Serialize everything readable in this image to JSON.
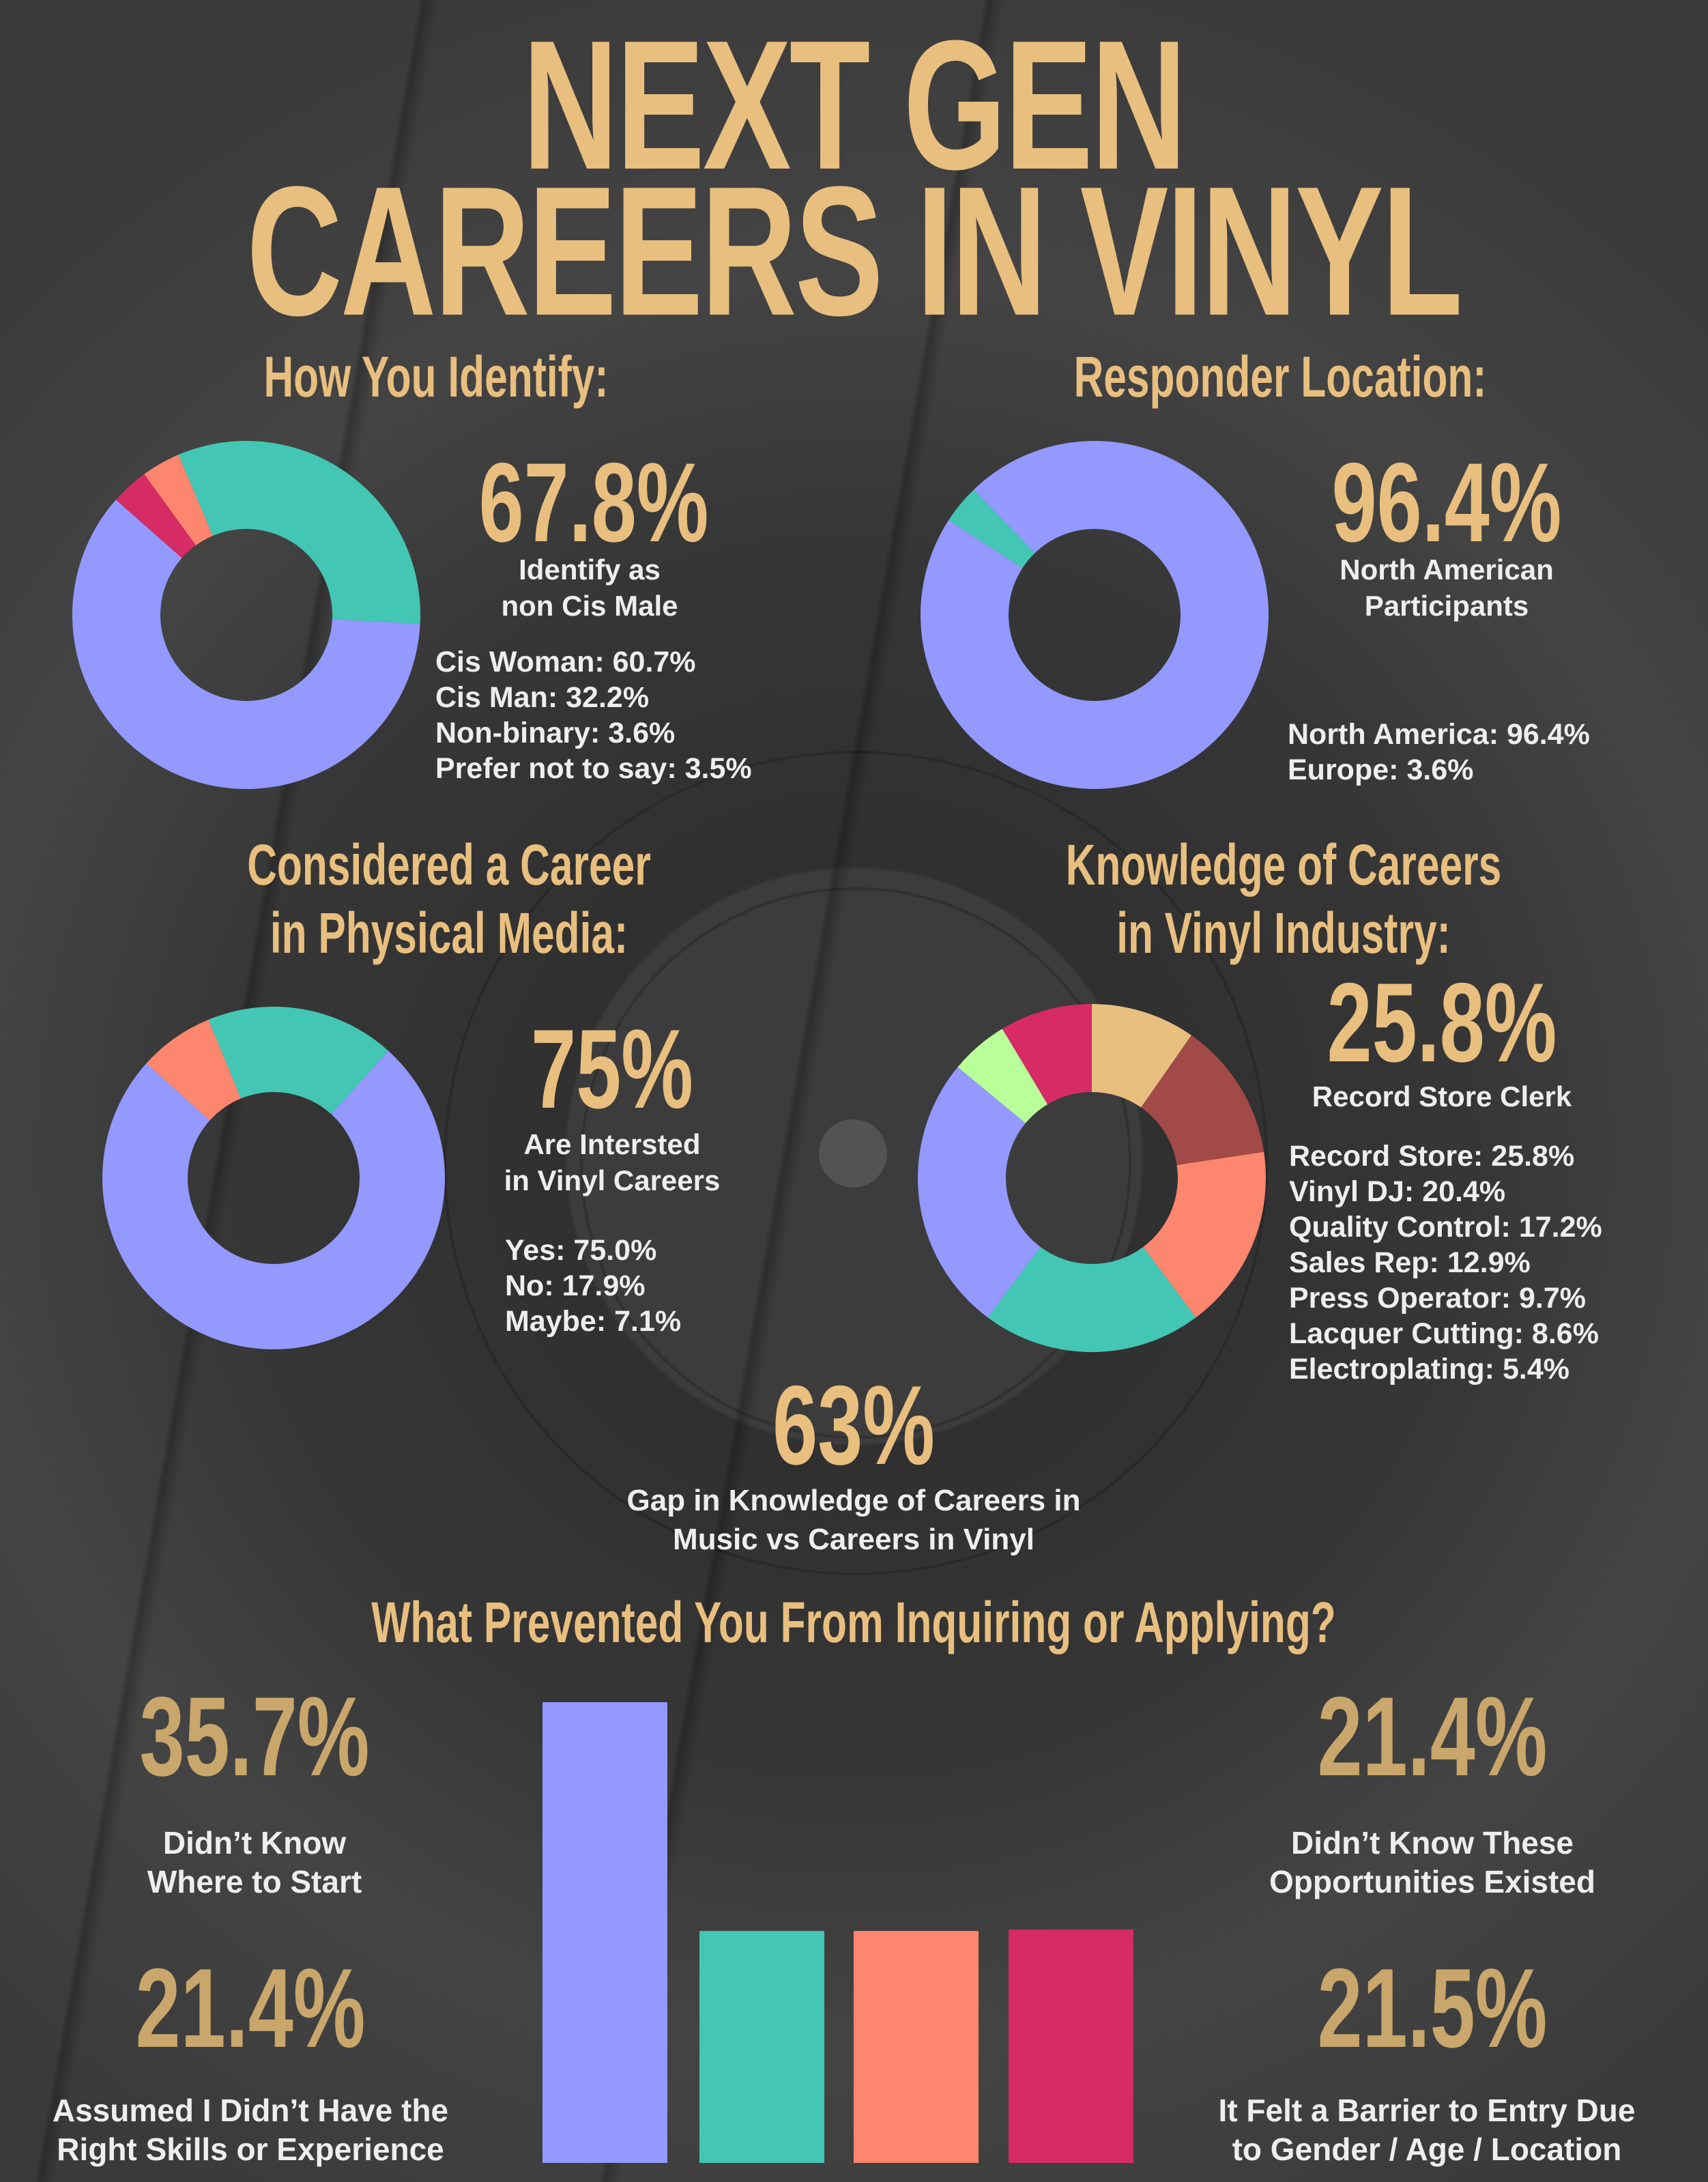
{
  "title": {
    "line1": "NEXT GEN",
    "line2": "CAREERS IN VINYL"
  },
  "colors": {
    "gold": "#e8bf7f",
    "purple": "#9399ff",
    "teal": "#43c7b4",
    "salmon": "#ff866e",
    "crimson": "#d62b64",
    "lightgreen": "#b8ff9a",
    "tan": "#e8bf7f",
    "brown": "#a14a48",
    "background": "#3a3a3a"
  },
  "identify": {
    "heading": "How You Identify:",
    "stat": "67.8%",
    "stat_label": [
      "Identify as",
      "non Cis Male"
    ],
    "legend": [
      "Cis Woman: 60.7%",
      "Cis Man: 32.2%",
      "Non-binary: 3.6%",
      "Prefer not to say: 3.5%"
    ]
  },
  "location": {
    "heading": "Responder Location:",
    "stat": "96.4%",
    "stat_label": [
      "North American",
      "Participants"
    ],
    "legend": [
      "North America: 96.4%",
      "Europe: 3.6%"
    ]
  },
  "considered": {
    "heading": [
      "Considered a Career",
      "in Physical Media:"
    ],
    "stat": "75%",
    "stat_label": [
      "Are Intersted",
      "in Vinyl Careers"
    ],
    "legend": [
      "Yes: 75.0%",
      "No: 17.9%",
      "Maybe: 7.1%"
    ]
  },
  "knowledge": {
    "heading": [
      "Knowledge of Careers",
      "in Vinyl Industry:"
    ],
    "stat": "25.8%",
    "stat_label": "Record Store Clerk",
    "legend": [
      "Record Store: 25.8%",
      "Vinyl DJ: 20.4%",
      "Quality Control: 17.2%",
      "Sales Rep: 12.9%",
      "Press Operator: 9.7%",
      "Lacquer Cutting: 8.6%",
      "Electroplating: 5.4%"
    ]
  },
  "gap": {
    "stat": "63%",
    "label": [
      "Gap in Knowledge of Careers in",
      "Music vs Careers in Vinyl"
    ]
  },
  "prevented": {
    "heading": "What Prevented You From Inquiring or Applying?",
    "items": [
      {
        "stat": "35.7%",
        "label": [
          "Didn’t Know",
          "Where to Start"
        ]
      },
      {
        "stat": "21.4%",
        "label": [
          "Didn’t Know These",
          "Opportunities Existed"
        ]
      },
      {
        "stat": "21.4%",
        "label": [
          "Assumed I Didn’t Have the",
          "Right Skills or Experience"
        ]
      },
      {
        "stat": "21.5%",
        "label": [
          "It Felt a Barrier to Entry Due",
          "to Gender / Age / Location"
        ]
      }
    ]
  },
  "chart_data": [
    {
      "type": "pie",
      "donut": true,
      "categories": [
        "Cis Man",
        "Cis Woman",
        "Prefer not to say",
        "Non-binary"
      ],
      "values": [
        32.2,
        60.7,
        3.5,
        3.6
      ],
      "colors": [
        "#43c7b4",
        "#9399ff",
        "#d62b64",
        "#ff866e"
      ]
    },
    {
      "type": "pie",
      "donut": true,
      "categories": [
        "North America",
        "Europe"
      ],
      "values": [
        96.4,
        3.6
      ],
      "colors": [
        "#9399ff",
        "#43c7b4"
      ]
    },
    {
      "type": "pie",
      "donut": true,
      "categories": [
        "No",
        "Yes",
        "Maybe"
      ],
      "values": [
        17.9,
        75.0,
        7.1
      ],
      "colors": [
        "#43c7b4",
        "#9399ff",
        "#ff866e"
      ]
    },
    {
      "type": "pie",
      "donut": true,
      "categories": [
        "Press Operator",
        "Sales Rep",
        "Quality Control",
        "Vinyl DJ",
        "Record Store",
        "Electroplating",
        "Lacquer Cutting"
      ],
      "values": [
        9.7,
        12.9,
        17.2,
        20.4,
        25.8,
        5.4,
        8.6
      ],
      "colors": [
        "#e8bf7f",
        "#a14a48",
        "#ff866e",
        "#43c7b4",
        "#9399ff",
        "#b8ff9a",
        "#d62b64"
      ]
    },
    {
      "type": "bar",
      "categories": [
        "Didn’t Know Where to Start",
        "Didn’t Know These Opportunities Existed",
        "Assumed I Didn’t Have the Right Skills or Experience",
        "It Felt a Barrier to Entry Due to Gender / Age / Location"
      ],
      "values": [
        35.7,
        21.4,
        21.4,
        21.5
      ],
      "colors": [
        "#9399ff",
        "#43c7b4",
        "#ff866e",
        "#d62b64"
      ]
    }
  ]
}
